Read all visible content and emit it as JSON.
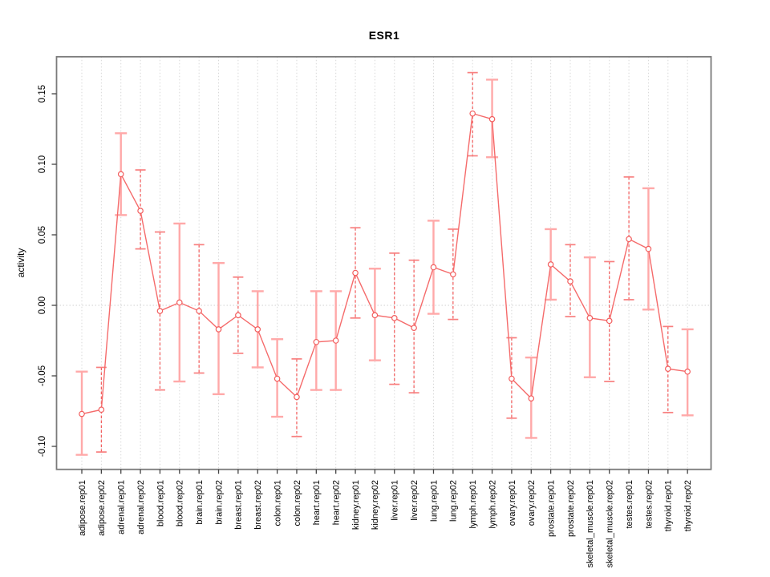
{
  "chart_data": {
    "type": "line",
    "title": "ESR1",
    "xlabel": "",
    "ylabel": "activity",
    "legend": "none",
    "grid": "vertical-dotted",
    "zero_line": true,
    "x_label_rotation": -90,
    "ylim": [
      -0.116,
      0.176
    ],
    "yticks": {
      "values": [
        0.15,
        0.1,
        0.05,
        0.0,
        -0.05,
        -0.1
      ],
      "labels": [
        "0.15",
        "0.10",
        "0.05",
        "0.00",
        "-0.05",
        "-0.10"
      ]
    },
    "categories": [
      "adipose.rep01",
      "adipose.rep02",
      "adrenal.rep01",
      "adrenal.rep02",
      "blood.rep01",
      "blood.rep02",
      "brain.rep01",
      "brain.rep02",
      "breast.rep01",
      "breast.rep02",
      "colon.rep01",
      "colon.rep02",
      "heart.rep01",
      "heart.rep02",
      "kidney.rep01",
      "kidney.rep02",
      "liver.rep01",
      "liver.rep02",
      "lung.rep01",
      "lung.rep02",
      "lymph.rep01",
      "lymph.rep02",
      "ovary.rep01",
      "ovary.rep02",
      "prostate.rep01",
      "prostate.rep02",
      "skeletal_muscle.rep01",
      "skeletal_muscle.rep02",
      "testes.rep01",
      "testes.rep02",
      "thyroid.rep01",
      "thyroid.rep02"
    ],
    "series": [
      {
        "name": "activity",
        "values": [
          -0.077,
          -0.074,
          0.093,
          0.067,
          -0.004,
          0.002,
          -0.004,
          -0.017,
          -0.007,
          -0.017,
          -0.052,
          -0.065,
          -0.026,
          -0.025,
          0.023,
          -0.007,
          -0.009,
          -0.016,
          0.027,
          0.022,
          0.136,
          0.132,
          -0.052,
          -0.066,
          0.029,
          0.017,
          -0.009,
          -0.011,
          0.047,
          0.04,
          -0.045,
          -0.047
        ],
        "ci_high": [
          -0.047,
          -0.044,
          0.122,
          0.096,
          0.052,
          0.058,
          0.043,
          0.03,
          0.02,
          0.01,
          -0.024,
          -0.038,
          0.01,
          0.01,
          0.055,
          0.026,
          0.037,
          0.032,
          0.06,
          0.054,
          0.165,
          0.16,
          -0.023,
          -0.037,
          0.054,
          0.043,
          0.034,
          0.031,
          0.091,
          0.083,
          -0.015,
          -0.017
        ],
        "ci_low": [
          -0.106,
          -0.104,
          0.064,
          0.04,
          -0.06,
          -0.054,
          -0.048,
          -0.063,
          -0.034,
          -0.044,
          -0.079,
          -0.093,
          -0.06,
          -0.06,
          -0.009,
          -0.039,
          -0.056,
          -0.062,
          -0.006,
          -0.01,
          0.106,
          0.105,
          -0.08,
          -0.094,
          0.004,
          -0.008,
          -0.051,
          -0.054,
          0.004,
          -0.003,
          -0.076,
          -0.078
        ],
        "error_bar_styles": [
          "solid",
          "dashed",
          "solid",
          "dashed",
          "dashed",
          "solid",
          "dashed",
          "solid",
          "dashed",
          "solid",
          "solid",
          "dashed",
          "solid",
          "solid",
          "dashed",
          "solid",
          "dashed",
          "dashed",
          "solid",
          "dashed",
          "dashed",
          "solid",
          "dashed",
          "solid",
          "solid",
          "dashed",
          "solid",
          "dashed",
          "dashed",
          "solid",
          "dashed",
          "solid"
        ]
      }
    ],
    "colors": {
      "point_stroke": "#f25e5e",
      "point_fill": "#ffffff",
      "series_line": "#f56b6b",
      "bar_solid": "#ffa9a9",
      "bar_dashed": "#f25a5a",
      "cap_solid": "#ffa9a9",
      "cap_dashed": "#f87f7f",
      "grid_line": "#d8d8d8",
      "zero_line": "#cfcfcf",
      "plot_border": "#7a7a7a",
      "tick": "#444444",
      "tick_label": "#000000",
      "background": "#ffffff"
    }
  }
}
